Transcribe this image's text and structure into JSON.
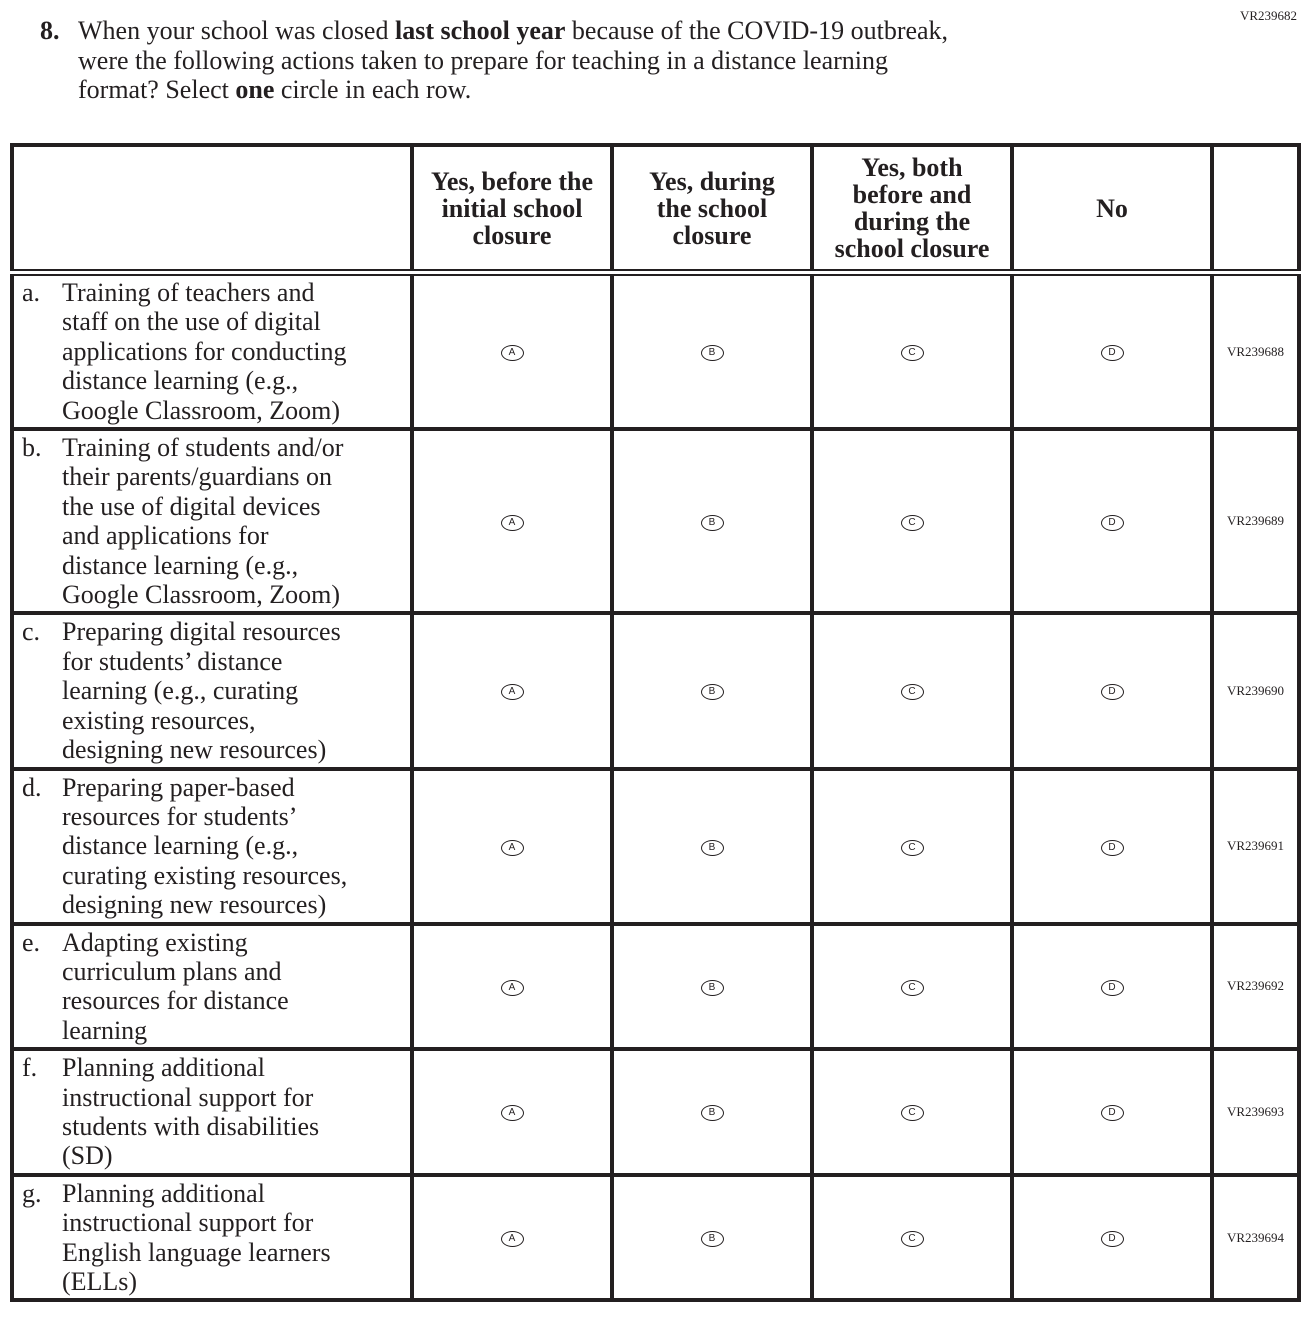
{
  "form_id": "VR239682",
  "question": {
    "number": "8.",
    "text_before": "When your school was closed ",
    "bold1": "last school year",
    "text_middle": " because of the COVID-19 outbreak,\nwere the following actions taken to prepare for teaching in a distance learning\nformat? Select ",
    "bold2": "one",
    "text_after": " circle in each row."
  },
  "columns": [
    "Yes, before the initial school closure",
    "Yes, during the school closure",
    "Yes, both before and during the school closure",
    "No"
  ],
  "column_lines": [
    "Yes, before the\ninitial school\nclosure",
    "Yes, during\nthe school\nclosure",
    "Yes, both\nbefore and\nduring the\nschool closure",
    "No"
  ],
  "options": [
    "A",
    "B",
    "C",
    "D"
  ],
  "rows": [
    {
      "letter": "a.",
      "text": "Training of teachers and\nstaff on the use of digital\napplications for conducting\ndistance learning (e.g.,\nGoogle Classroom, Zoom)",
      "code": "VR239688"
    },
    {
      "letter": "b.",
      "text": "Training of students and/or\ntheir parents/guardians on\nthe use of digital devices\nand applications for\ndistance learning (e.g.,\nGoogle Classroom, Zoom)",
      "code": "VR239689"
    },
    {
      "letter": "c.",
      "text": "Preparing digital resources\nfor students’ distance\nlearning (e.g., curating\nexisting resources,\ndesigning new resources)",
      "code": "VR239690"
    },
    {
      "letter": "d.",
      "text": "Preparing paper-based\nresources for students’\ndistance learning (e.g.,\ncurating existing resources,\ndesigning new resources)",
      "code": "VR239691"
    },
    {
      "letter": "e.",
      "text": "Adapting existing\ncurriculum plans and\nresources for distance\nlearning",
      "code": "VR239692"
    },
    {
      "letter": "f.",
      "text": "Planning additional\ninstructional support for\nstudents with disabilities\n(SD)",
      "code": "VR239693"
    },
    {
      "letter": "g.",
      "text": "Planning additional\ninstructional support for\nEnglish language learners\n(ELLs)",
      "code": "VR239694"
    }
  ]
}
